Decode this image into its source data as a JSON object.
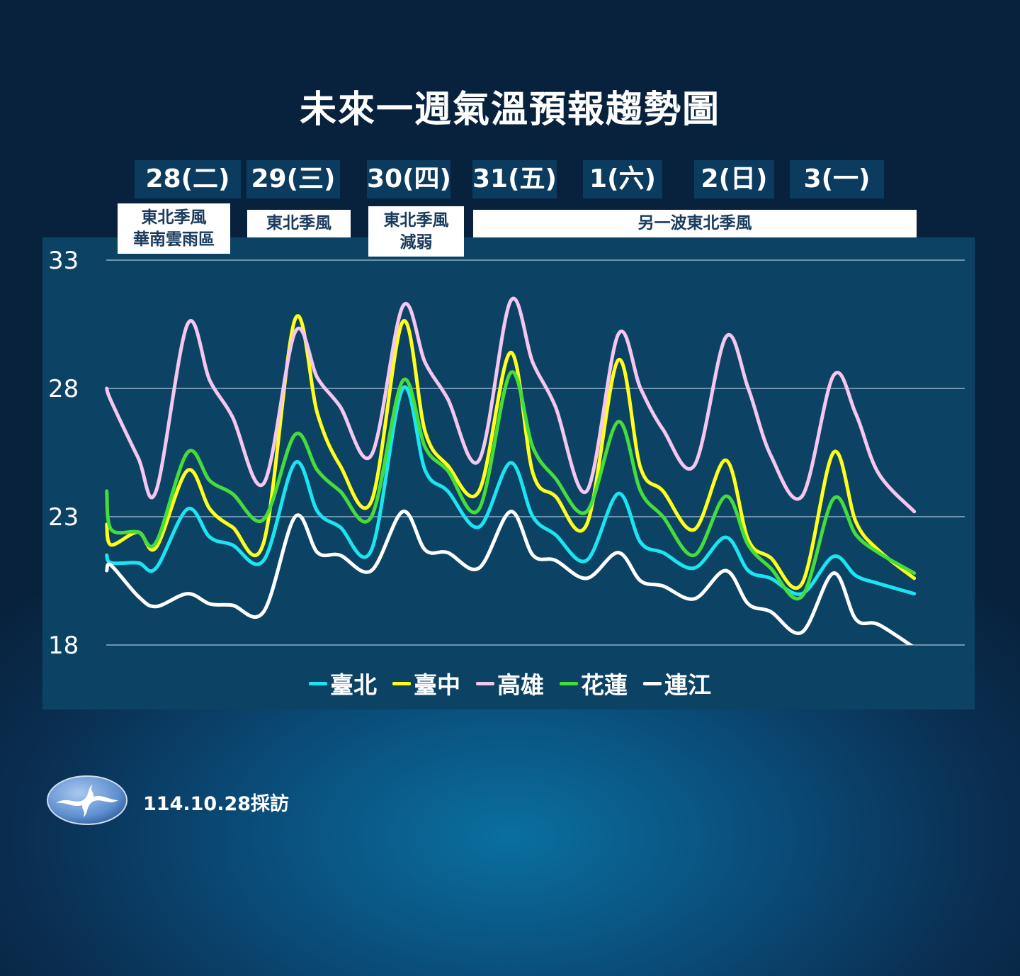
{
  "title": "未來一週氣溫預報趨勢圖",
  "days": [
    "28(二)",
    "29(三)",
    "30(四)",
    "31(五)",
    "1(六)",
    "2(日)",
    "3(一)"
  ],
  "notes": [
    {
      "lines": [
        "東北季風",
        "華南雲雨區"
      ]
    },
    {
      "lines": [
        "東北季風"
      ]
    },
    {
      "lines": [
        "東北季風",
        "減弱"
      ]
    },
    {
      "lines": [
        "另一波東北季風"
      ]
    }
  ],
  "footer": {
    "date_label": "114.10.28採訪",
    "logo": "central-weather-administration-logo"
  },
  "chart_data": {
    "type": "line",
    "title": "未來一週氣溫預報趨勢圖",
    "xlabel": "",
    "ylabel": "",
    "ylim": [
      18,
      33
    ],
    "yticks": [
      33,
      28,
      23,
      18
    ],
    "grid": true,
    "legend_position": "bottom",
    "x": [
      "10/27 20:00",
      "10/27 21:00",
      "10/28 03:00",
      "10/28 07:00",
      "10/28 14:00",
      "10/28 19:00",
      "10/29 00:00",
      "10/29 07:00",
      "10/29 14:00",
      "10/29 19:00",
      "10/30 00:00",
      "10/30 07:00",
      "10/30 14:00",
      "10/30 19:00",
      "10/31 00:00",
      "10/31 07:00",
      "10/31 14:00",
      "10/31 19:00",
      "11/01 00:00",
      "11/01 07:00",
      "11/01 14:00",
      "11/01 19:00",
      "11/02 00:00",
      "11/02 07:00",
      "11/02 14:00",
      "11/02 19:00",
      "11/03 00:00",
      "11/03 07:00",
      "11/03 14:00",
      "11/03 19:00",
      "11/04 00:00",
      "11/04 08:00"
    ],
    "series": [
      {
        "name": "臺北",
        "color": "#19e6f0",
        "values": [
          21.5,
          21.2,
          21.2,
          21.0,
          23.3,
          22.2,
          21.9,
          21.3,
          25.1,
          23.2,
          22.6,
          21.7,
          28.0,
          24.8,
          24.0,
          22.6,
          25.1,
          23.0,
          22.3,
          21.3,
          23.9,
          22.0,
          21.6,
          21.0,
          22.2,
          20.9,
          20.6,
          20.0,
          21.45,
          20.7,
          20.4,
          20.0
        ]
      },
      {
        "name": "臺中",
        "color": "#ffff1a",
        "values": [
          22.7,
          21.9,
          22.4,
          21.8,
          24.8,
          23.3,
          22.6,
          22.0,
          30.7,
          27.0,
          25.0,
          23.6,
          30.6,
          26.3,
          25.0,
          24.0,
          29.4,
          24.7,
          23.8,
          22.7,
          29.1,
          24.9,
          24.0,
          22.5,
          25.2,
          22.1,
          21.4,
          20.4,
          25.5,
          22.8,
          21.7,
          20.6
        ]
      },
      {
        "name": "高雄",
        "color": "#f5c6f0",
        "values": [
          28.0,
          27.5,
          25.3,
          24.0,
          30.5,
          28.3,
          26.9,
          24.3,
          30.2,
          28.4,
          27.3,
          25.4,
          31.2,
          29.0,
          27.6,
          25.2,
          31.4,
          29.0,
          27.3,
          24.0,
          30.1,
          28.0,
          26.4,
          25.0,
          30.0,
          28.0,
          25.4,
          23.8,
          28.5,
          27.0,
          24.7,
          23.2
        ]
      },
      {
        "name": "花蓮",
        "color": "#44dd3a",
        "values": [
          24.0,
          22.5,
          22.4,
          22.0,
          25.5,
          24.4,
          23.9,
          22.9,
          26.2,
          24.8,
          24.0,
          23.0,
          28.3,
          25.7,
          24.8,
          23.3,
          28.6,
          25.7,
          24.5,
          23.2,
          26.7,
          24.0,
          23.0,
          21.5,
          23.8,
          21.9,
          21.0,
          19.9,
          23.7,
          22.3,
          21.6,
          20.8
        ]
      },
      {
        "name": "連江",
        "color": "#ffffff",
        "values": [
          20.9,
          21.1,
          19.9,
          19.5,
          20.0,
          19.6,
          19.55,
          19.3,
          23.0,
          21.6,
          21.5,
          20.9,
          23.2,
          21.7,
          21.6,
          21.0,
          23.2,
          21.5,
          21.3,
          20.6,
          21.6,
          20.5,
          20.3,
          19.8,
          20.9,
          19.6,
          19.3,
          18.5,
          20.8,
          19.0,
          18.8,
          17.9
        ]
      }
    ]
  }
}
